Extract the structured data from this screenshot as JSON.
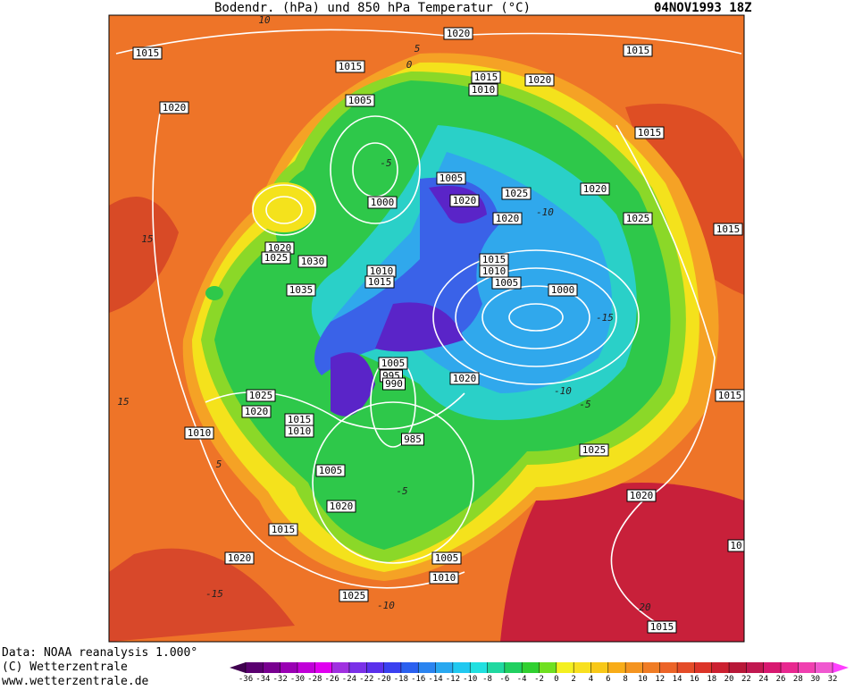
{
  "header": {
    "title": "Bodendr. (hPa) und 850 hPa Temperatur (°C)",
    "date": "04NOV1993 18Z"
  },
  "footer": {
    "source": "Data: NOAA reanalysis 1.000°",
    "copyright": "(C) Wetterzentrale",
    "url": "www.wetterzentrale.de"
  },
  "isobar_labels": [
    "1015",
    "1020",
    "1015",
    "1015",
    "1010",
    "1020",
    "1015",
    "1020",
    "1005",
    "1015",
    "1005",
    "1020",
    "1025",
    "1020",
    "1000",
    "1020",
    "1025",
    "1015",
    "1020",
    "1025",
    "1030",
    "1015",
    "1010",
    "1010",
    "1015",
    "1005",
    "1035",
    "1000",
    "1005",
    "995",
    "990",
    "1020",
    "1015",
    "1025",
    "1020",
    "1015",
    "1010",
    "1010",
    "985",
    "1005",
    "1025",
    "1020",
    "1020",
    "1015",
    "10",
    "1020",
    "1005",
    "1010",
    "1025",
    "1015"
  ],
  "temperature_labels": [
    "10",
    "5",
    "0",
    "15",
    "-5",
    "-10",
    "-15",
    "-10",
    "-5",
    "5",
    "15",
    "-5",
    "-15",
    "-10",
    "20"
  ],
  "colorbar": {
    "ticks": [
      -36,
      -34,
      -32,
      -30,
      -28,
      -26,
      -24,
      -22,
      -20,
      -18,
      -16,
      -14,
      -12,
      -10,
      -8,
      -6,
      -4,
      -2,
      0,
      2,
      4,
      6,
      8,
      10,
      12,
      14,
      16,
      18,
      20,
      22,
      24,
      26,
      28,
      30,
      32
    ]
  }
}
